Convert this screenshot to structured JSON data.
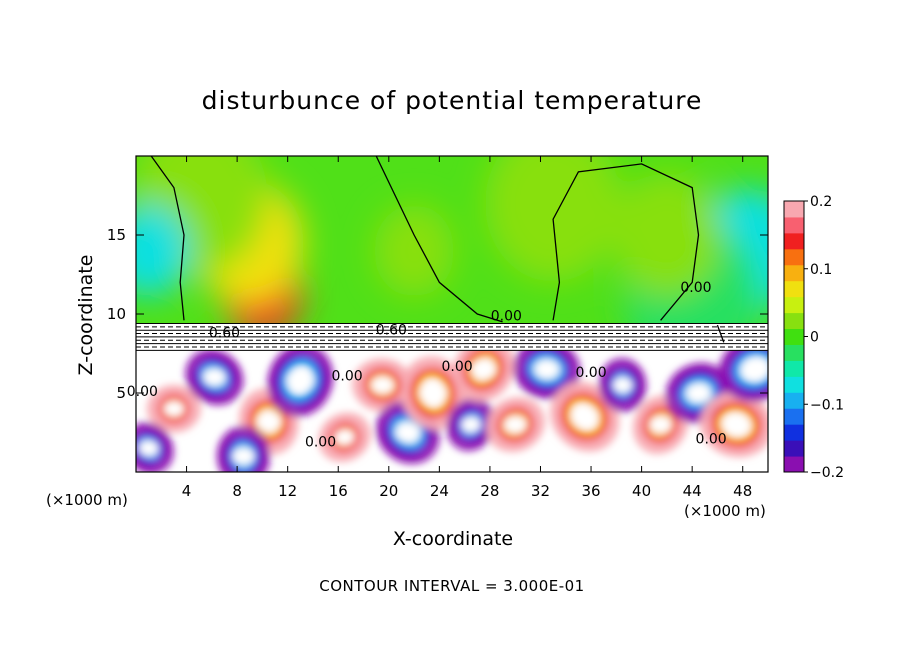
{
  "chart_data": {
    "type": "heatmap",
    "title": "disturbunce of potential temperature",
    "xlabel": "X-coordinate",
    "ylabel": "Z-coordinate",
    "x_unit_label": "(×1000 m)",
    "z_unit_label": "(×1000 m)",
    "footnote": "CONTOUR INTERVAL = 3.000E-01",
    "xlim": [
      0,
      50
    ],
    "ylim": [
      0,
      20
    ],
    "x_ticks": [
      "4",
      "8",
      "12",
      "16",
      "20",
      "24",
      "28",
      "32",
      "36",
      "40",
      "44",
      "48"
    ],
    "x_tick_values": [
      4,
      8,
      12,
      16,
      20,
      24,
      28,
      32,
      36,
      40,
      44,
      48
    ],
    "y_ticks": [
      "5",
      "10",
      "15"
    ],
    "y_tick_values": [
      5,
      10,
      15
    ],
    "colorbar": {
      "min": -0.2,
      "max": 0.2,
      "tick_labels": [
        "0.2",
        "0.1",
        "0",
        "−0.1",
        "−0.2"
      ],
      "tick_values": [
        0.2,
        0.1,
        0,
        -0.1,
        -0.2
      ],
      "colors": [
        "#8a0fb0",
        "#3a0fb8",
        "#1030e0",
        "#1a70f0",
        "#18b0f0",
        "#10e0e0",
        "#10e8a8",
        "#28e060",
        "#40e010",
        "#88e010",
        "#c8f010",
        "#f0e010",
        "#f8b010",
        "#f87010",
        "#f02020",
        "#f86070",
        "#f8a8b0"
      ]
    },
    "contour_labels": [
      {
        "text": "0.00",
        "x": 29.3,
        "z": 9.6
      },
      {
        "text": "0.00",
        "x": 44.3,
        "z": 11.4
      },
      {
        "text": "0.60",
        "x": 20.2,
        "z": 8.7
      },
      {
        "text": "0.60",
        "x": 7.0,
        "z": 8.5
      },
      {
        "text": "0.00",
        "x": 16.7,
        "z": 5.8
      },
      {
        "text": "0.00",
        "x": 25.4,
        "z": 6.4
      },
      {
        "text": "0.00",
        "x": 36.0,
        "z": 6.0
      },
      {
        "text": "0.00",
        "x": 14.6,
        "z": 1.6
      },
      {
        "text": "0.00",
        "x": 45.5,
        "z": 1.8
      },
      {
        "text": "0.00",
        "x": 0.5,
        "z": 4.8
      }
    ],
    "upper_features": [
      {
        "x": 10.0,
        "z": 11.4,
        "value": 0.13
      },
      {
        "x": 9.0,
        "z": 14.5,
        "value": 0.07
      },
      {
        "x": 5.0,
        "z": 17.5,
        "value": 0.02
      },
      {
        "x": 1.0,
        "z": 14.0,
        "value": -0.06
      },
      {
        "x": 48.5,
        "z": 14.0,
        "value": -0.07
      },
      {
        "x": 44.0,
        "z": 11.0,
        "value": -0.03
      },
      {
        "x": 22.0,
        "z": 14.0,
        "value": 0.02
      },
      {
        "x": 42.0,
        "z": 15.0,
        "value": 0.015
      },
      {
        "x": 33.0,
        "z": 17.0,
        "value": 0.02
      }
    ],
    "lower_features": [
      {
        "x": 3.0,
        "z": 4.0,
        "value": 0.3
      },
      {
        "x": 6.2,
        "z": 6.0,
        "value": -0.25
      },
      {
        "x": 10.5,
        "z": 3.2,
        "value": 0.3
      },
      {
        "x": 13.0,
        "z": 5.8,
        "value": -0.3
      },
      {
        "x": 16.5,
        "z": 2.2,
        "value": 0.25
      },
      {
        "x": 19.5,
        "z": 5.5,
        "value": 0.3
      },
      {
        "x": 21.5,
        "z": 2.5,
        "value": -0.25
      },
      {
        "x": 23.5,
        "z": 5.0,
        "value": 0.3
      },
      {
        "x": 26.5,
        "z": 3.0,
        "value": -0.3
      },
      {
        "x": 30.0,
        "z": 3.0,
        "value": 0.35
      },
      {
        "x": 32.5,
        "z": 6.5,
        "value": -0.3
      },
      {
        "x": 35.5,
        "z": 3.5,
        "value": 0.3
      },
      {
        "x": 38.5,
        "z": 5.5,
        "value": -0.3
      },
      {
        "x": 41.5,
        "z": 3.0,
        "value": 0.3
      },
      {
        "x": 44.5,
        "z": 5.0,
        "value": -0.3
      },
      {
        "x": 47.5,
        "z": 3.0,
        "value": 0.25
      },
      {
        "x": 1.0,
        "z": 1.5,
        "value": -0.25
      },
      {
        "x": 8.5,
        "z": 1.0,
        "value": -0.28
      },
      {
        "x": 27.5,
        "z": 6.5,
        "value": 0.25
      },
      {
        "x": 49.0,
        "z": 6.5,
        "value": -0.25
      }
    ],
    "inversion_layer_z": [
      7.7,
      9.4
    ]
  }
}
